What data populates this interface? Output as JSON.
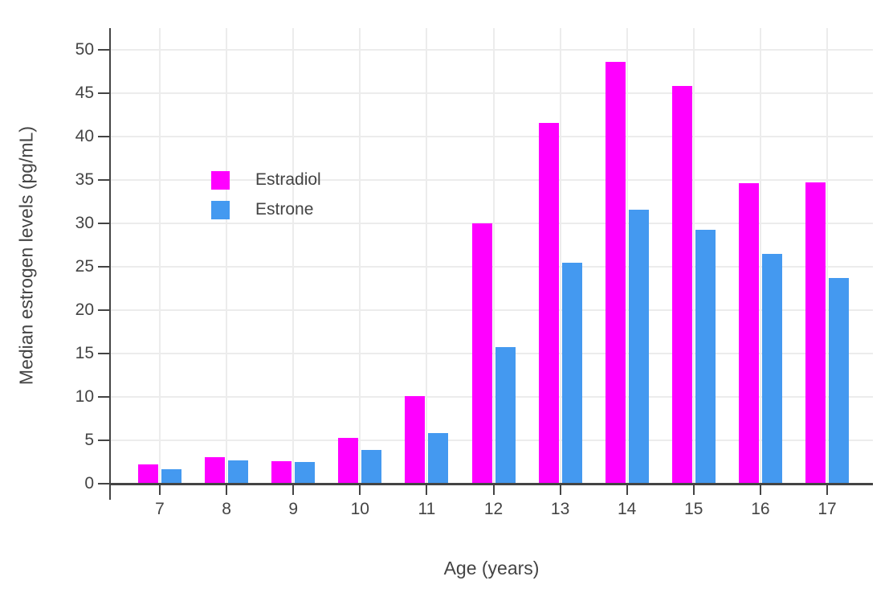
{
  "chart_data": {
    "type": "bar",
    "title": "",
    "xlabel": "Age (years)",
    "ylabel": "Median estrogen levels (pg/mL)",
    "categories": [
      7,
      8,
      9,
      10,
      11,
      12,
      13,
      14,
      15,
      16,
      17
    ],
    "series": [
      {
        "name": "Estradiol",
        "color": "#FF00FF",
        "values": [
          2.2,
          3.1,
          2.6,
          5.3,
          10.1,
          30.0,
          41.6,
          48.6,
          45.8,
          34.6,
          34.7
        ]
      },
      {
        "name": "Estrone",
        "color": "#4499F0",
        "values": [
          1.7,
          2.7,
          2.5,
          3.9,
          5.8,
          15.7,
          25.5,
          31.6,
          29.3,
          26.5,
          23.7
        ]
      }
    ],
    "ylim": [
      0,
      52.5
    ],
    "yticks": [
      0,
      5,
      10,
      15,
      20,
      25,
      30,
      35,
      40,
      45,
      50
    ],
    "grid": true,
    "legend_position": "inside-top-left",
    "layout_colors": {
      "grid": "#ececec",
      "axis": "#444444",
      "text": "#444444",
      "background": "#ffffff"
    }
  }
}
